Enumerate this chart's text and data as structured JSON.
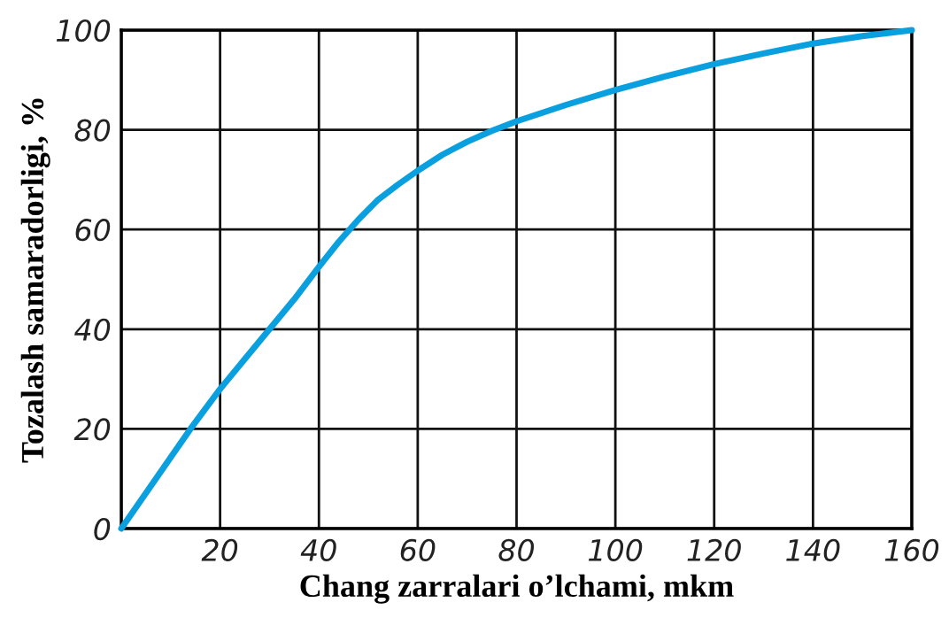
{
  "chart_data": {
    "type": "line",
    "xlabel": "Chang zarralari o’lchami, mkm",
    "ylabel": "Tozalash samaradorligi, %",
    "series": [
      {
        "color": "#0aa0e0",
        "x": [
          0,
          7,
          14,
          20,
          25,
          30,
          35,
          40,
          44,
          48,
          52,
          56,
          60,
          65,
          70,
          75,
          80,
          90,
          100,
          110,
          120,
          130,
          140,
          150,
          160
        ],
        "values": [
          0,
          10,
          20,
          28,
          34,
          40,
          46,
          52.5,
          57.5,
          62,
          66,
          69,
          71.8,
          75,
          77.6,
          79.8,
          81.7,
          85,
          88,
          90.7,
          93.2,
          95.3,
          97.3,
          98.8,
          100
        ]
      }
    ],
    "xlim": [
      0,
      160
    ],
    "xticks": [
      {
        "value": 0,
        "label": null
      },
      20,
      40,
      60,
      80,
      100,
      120,
      140,
      160
    ],
    "ylim": [
      0,
      100
    ],
    "yticks": [
      0,
      20,
      40,
      60,
      80,
      100
    ],
    "grid": true,
    "marker": "none",
    "line_style": "solid"
  }
}
